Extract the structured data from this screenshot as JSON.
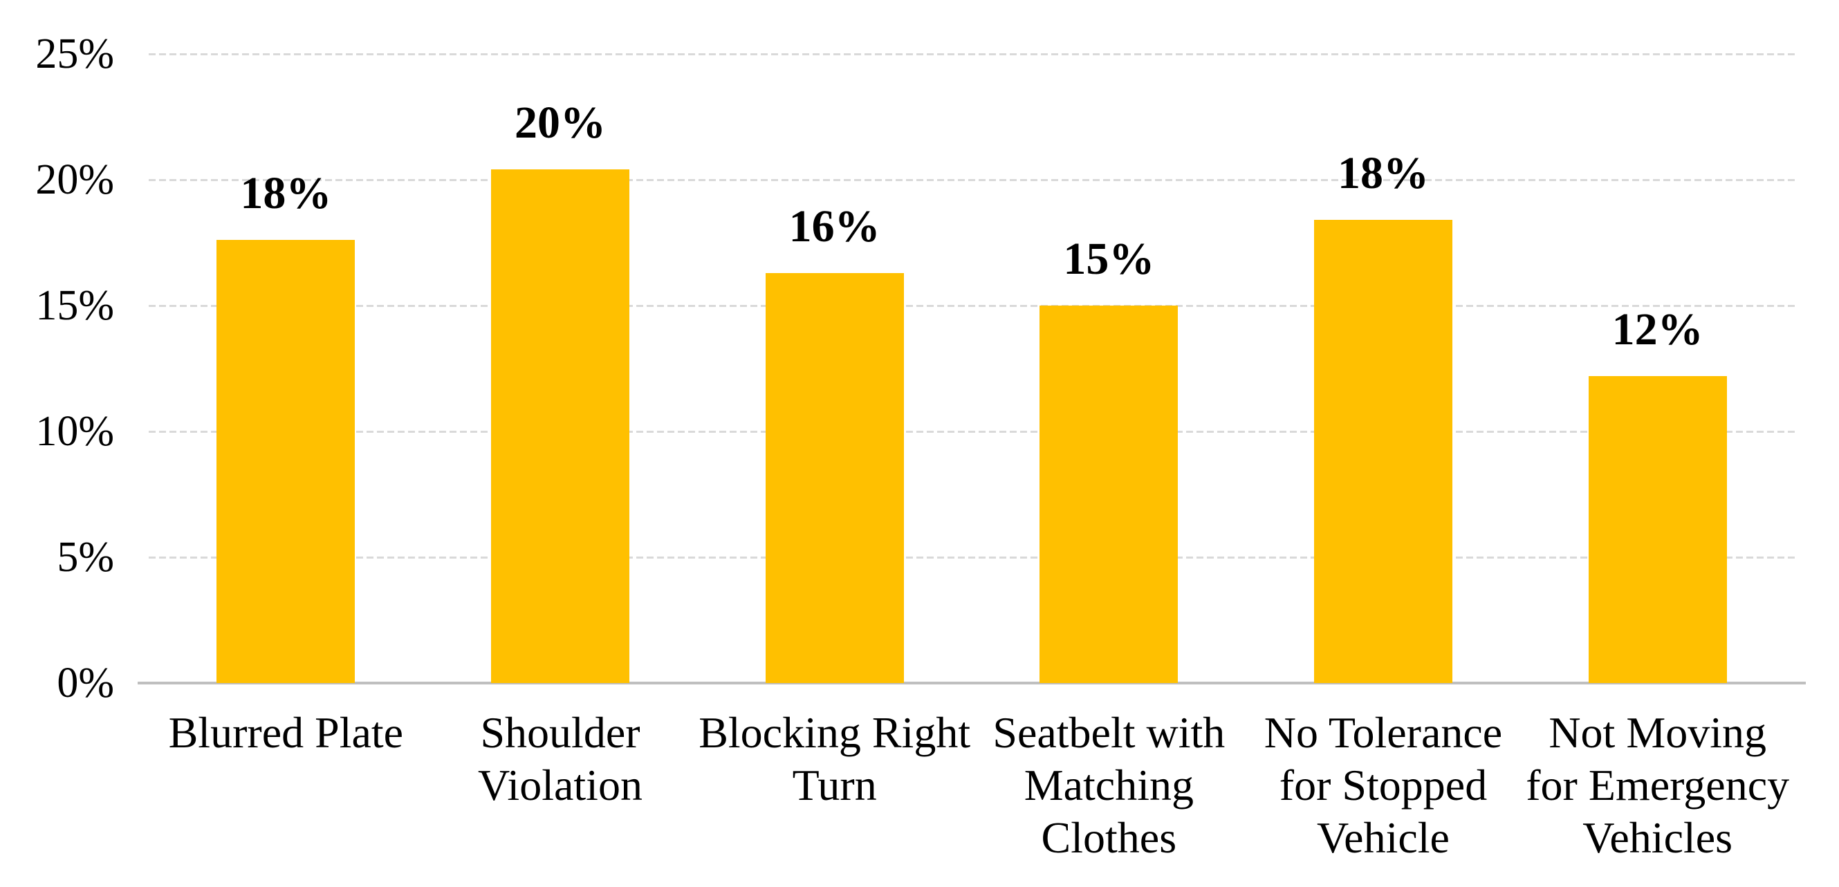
{
  "chart_data": {
    "type": "bar",
    "title": "",
    "xlabel": "",
    "ylabel": "",
    "categories": [
      "Blurred Plate",
      "Shoulder Violation",
      "Blocking Right Turn",
      "Seatbelt with Matching Clothes",
      "No Tolerance for Stopped Vehicle",
      "Not Moving for Emergency Vehicles"
    ],
    "values": [
      17.6,
      20.4,
      16.3,
      15.0,
      18.4,
      12.2
    ],
    "data_labels": [
      "18%",
      "20%",
      "16%",
      "15%",
      "18%",
      "12%"
    ],
    "ylim": [
      0,
      25
    ],
    "ytick_step": 5,
    "ytick_labels": [
      "0%",
      "5%",
      "10%",
      "15%",
      "20%",
      "25%"
    ],
    "grid": true,
    "legend": false,
    "colors": {
      "bar": "#FFC000",
      "gridline": "#D9D9D9",
      "axis_line": "#BFBFBF",
      "text": "#000000",
      "background": "#FFFFFF"
    }
  }
}
